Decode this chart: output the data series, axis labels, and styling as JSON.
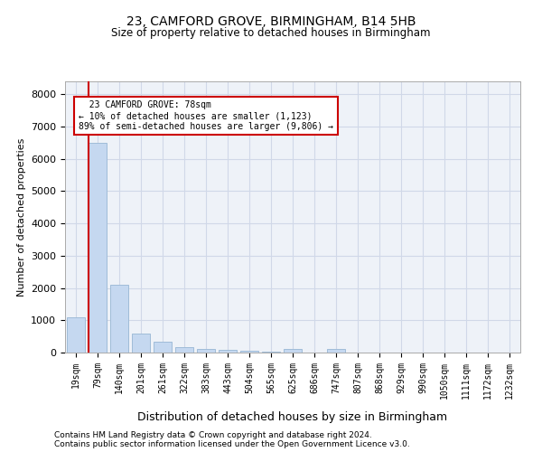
{
  "title1": "23, CAMFORD GROVE, BIRMINGHAM, B14 5HB",
  "title2": "Size of property relative to detached houses in Birmingham",
  "xlabel": "Distribution of detached houses by size in Birmingham",
  "ylabel": "Number of detached properties",
  "footnote1": "Contains HM Land Registry data © Crown copyright and database right 2024.",
  "footnote2": "Contains public sector information licensed under the Open Government Licence v3.0.",
  "bin_labels": [
    "19sqm",
    "79sqm",
    "140sqm",
    "201sqm",
    "261sqm",
    "322sqm",
    "383sqm",
    "443sqm",
    "504sqm",
    "565sqm",
    "625sqm",
    "686sqm",
    "747sqm",
    "807sqm",
    "868sqm",
    "929sqm",
    "990sqm",
    "1050sqm",
    "1111sqm",
    "1172sqm",
    "1232sqm"
  ],
  "bar_values": [
    1100,
    6500,
    2100,
    600,
    350,
    175,
    125,
    90,
    60,
    30,
    120,
    0,
    100,
    0,
    0,
    0,
    0,
    0,
    0,
    0,
    0
  ],
  "bar_color": "#c5d8f0",
  "bar_edge_color": "#a0bcd8",
  "grid_color": "#d0d8e8",
  "background_color": "#eef2f8",
  "property_line_color": "#cc0000",
  "property_line_bar_index": 1,
  "annotation_text_line1": "  23 CAMFORD GROVE: 78sqm",
  "annotation_text_line2": "← 10% of detached houses are smaller (1,123)",
  "annotation_text_line3": "89% of semi-detached houses are larger (9,806) →",
  "annotation_box_color": "#ffffff",
  "annotation_border_color": "#cc0000",
  "ylim": [
    0,
    8400
  ],
  "yticks": [
    0,
    1000,
    2000,
    3000,
    4000,
    5000,
    6000,
    7000,
    8000
  ],
  "bar_width": 0.85
}
